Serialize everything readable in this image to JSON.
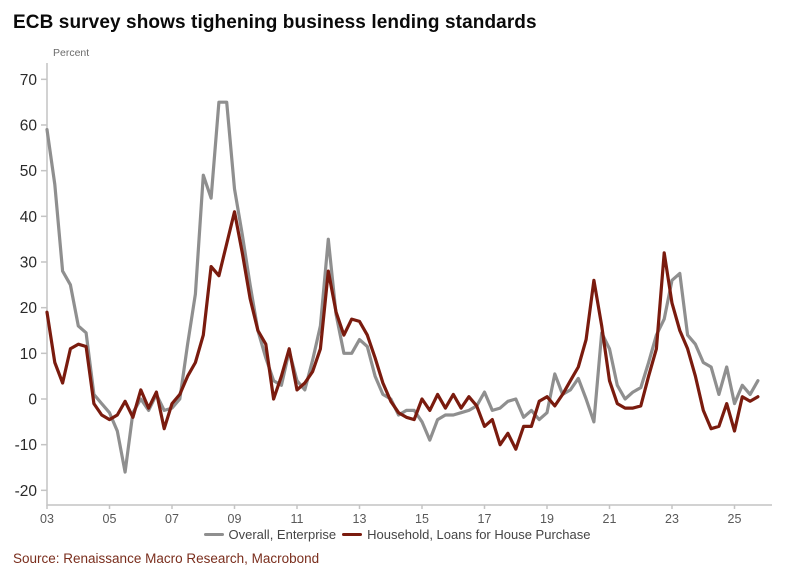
{
  "header": {
    "title": "ECB survey shows tighening business lending standards"
  },
  "footer": {
    "source": "Source: Renaissance Macro Research, Macrobond"
  },
  "chart_data": {
    "type": "line",
    "unit_label": "Percent",
    "x_start_year": 2003,
    "points_per_year": 4,
    "x_tick_labels": [
      "03",
      "05",
      "07",
      "09",
      "11",
      "13",
      "15",
      "17",
      "19",
      "21",
      "23",
      "25"
    ],
    "y_ticks": [
      70,
      60,
      50,
      40,
      30,
      20,
      10,
      0,
      -10,
      -20
    ],
    "ylim": [
      -23,
      73
    ],
    "grid": false,
    "legend_position": "bottom",
    "axis_color": "#c4c4c4",
    "tick_text_color": "#2a2a2a",
    "x_tick_text_color": "#595959",
    "series": [
      {
        "name": "Overall, Enterprise",
        "color": "#8f8f8f",
        "values": [
          59,
          47,
          28,
          25,
          16,
          14.5,
          1,
          -1,
          -3,
          -7,
          -16,
          -3,
          0,
          -2.5,
          1,
          -2.5,
          -2,
          0,
          12,
          23,
          49,
          44,
          65,
          65,
          46,
          36,
          25,
          15,
          9,
          4,
          3,
          10.5,
          4,
          2,
          8.5,
          16,
          35,
          18.5,
          10,
          10,
          13,
          11.5,
          5,
          1,
          0,
          -3.5,
          -2.5,
          -2.5,
          -5,
          -9,
          -4.5,
          -3.5,
          -3.5,
          -3,
          -2.5,
          -1.5,
          1.5,
          -2.5,
          -2,
          -0.5,
          0,
          -4,
          -2.5,
          -4.5,
          -3,
          5.5,
          1,
          2,
          4.5,
          0,
          -5,
          14.5,
          11,
          3,
          0,
          1.5,
          2.5,
          8,
          14,
          17.5,
          26,
          27.5,
          14,
          12,
          8,
          7,
          1,
          7,
          -1,
          3,
          1,
          4
        ]
      },
      {
        "name": "Household, Loans for House Purchase",
        "color": "#7a1b0e",
        "values": [
          19,
          8,
          3.5,
          11,
          12,
          11.5,
          -1,
          -3.5,
          -4.5,
          -3.5,
          -0.5,
          -4,
          2,
          -2,
          1.5,
          -6.5,
          -1,
          1,
          5,
          8,
          14,
          29,
          27,
          34,
          41,
          32,
          22,
          15,
          12,
          0,
          5,
          11,
          2,
          3.5,
          6,
          11,
          28,
          19,
          14,
          17.5,
          17,
          14,
          9,
          3.5,
          -0.5,
          -3,
          -4,
          -4.5,
          0,
          -2.5,
          1,
          -2,
          1,
          -2,
          0.5,
          -1.5,
          -6,
          -4.5,
          -10,
          -7.5,
          -11,
          -6,
          -6,
          -0.5,
          0.5,
          -1.5,
          1,
          4,
          7,
          13,
          26,
          16,
          4,
          -1,
          -2,
          -2,
          -1.5,
          5,
          11,
          32,
          21,
          15,
          11,
          5,
          -2.5,
          -6.5,
          -6,
          -1,
          -7,
          0.5,
          -0.5,
          0.5
        ]
      }
    ]
  }
}
